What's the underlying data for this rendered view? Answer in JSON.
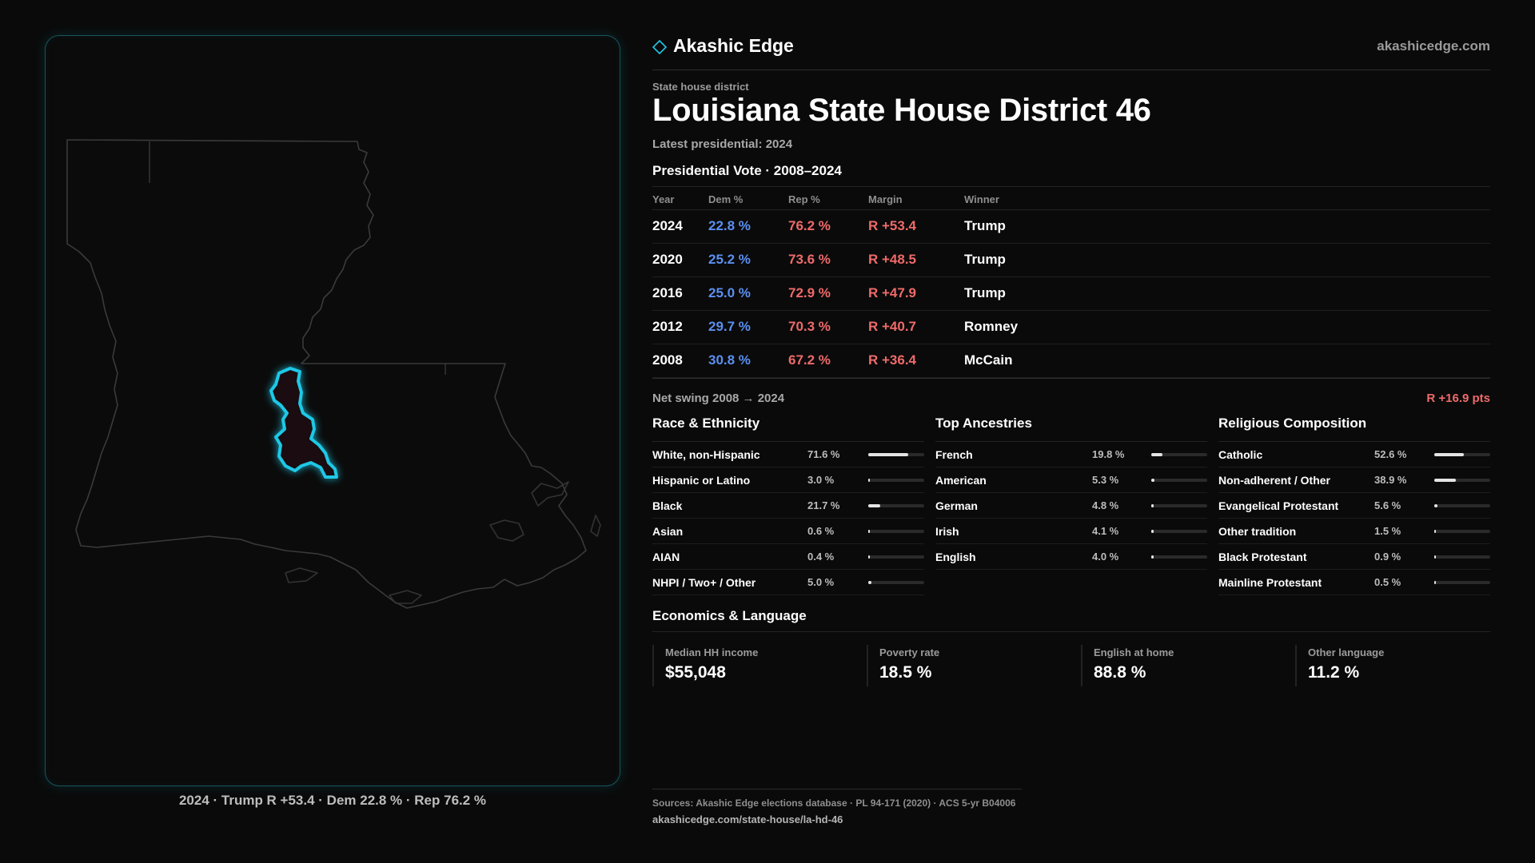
{
  "brand": {
    "name": "Akashic Edge",
    "url": "akashicedge.com",
    "accent": "#1ec8e6"
  },
  "header": {
    "kicker": "State house district",
    "title": "Louisiana State House District 46",
    "subtitle": "Latest presidential: 2024"
  },
  "map": {
    "caption": "2024 · Trump R +53.4 · Dem 22.8 % · Rep 76.2 %",
    "state_icon": "louisiana-outline",
    "district_highlight_color": "#1ec8e6"
  },
  "presidential": {
    "heading": "Presidential Vote · 2008–2024",
    "columns": [
      "Year",
      "Dem %",
      "Rep %",
      "Margin",
      "Winner"
    ],
    "rows": [
      {
        "year": "2024",
        "dem": "22.8 %",
        "rep": "76.2 %",
        "margin": "R +53.4",
        "winner": "Trump"
      },
      {
        "year": "2020",
        "dem": "25.2 %",
        "rep": "73.6 %",
        "margin": "R +48.5",
        "winner": "Trump"
      },
      {
        "year": "2016",
        "dem": "25.0 %",
        "rep": "72.9 %",
        "margin": "R +47.9",
        "winner": "Trump"
      },
      {
        "year": "2012",
        "dem": "29.7 %",
        "rep": "70.3 %",
        "margin": "R +40.7",
        "winner": "Romney"
      },
      {
        "year": "2008",
        "dem": "30.8 %",
        "rep": "67.2 %",
        "margin": "R +36.4",
        "winner": "McCain"
      }
    ],
    "dem_color": "#5b8ff0",
    "rep_color": "#ef6a6a"
  },
  "swing": {
    "label": "Net swing 2008 → 2024",
    "value": "R +16.9 pts"
  },
  "race": {
    "heading": "Race & Ethnicity",
    "rows": [
      {
        "label": "White, non-Hispanic",
        "pct": "71.6 %",
        "share": 0.716
      },
      {
        "label": "Hispanic or Latino",
        "pct": "3.0 %",
        "share": 0.03
      },
      {
        "label": "Black",
        "pct": "21.7 %",
        "share": 0.217
      },
      {
        "label": "Asian",
        "pct": "0.6 %",
        "share": 0.006
      },
      {
        "label": "AIAN",
        "pct": "0.4 %",
        "share": 0.004
      },
      {
        "label": "NHPI / Two+ / Other",
        "pct": "5.0 %",
        "share": 0.05
      }
    ]
  },
  "ancestry": {
    "heading": "Top Ancestries",
    "rows": [
      {
        "label": "French",
        "pct": "19.8 %",
        "share": 0.198
      },
      {
        "label": "American",
        "pct": "5.3 %",
        "share": 0.053
      },
      {
        "label": "German",
        "pct": "4.8 %",
        "share": 0.048
      },
      {
        "label": "Irish",
        "pct": "4.1 %",
        "share": 0.041
      },
      {
        "label": "English",
        "pct": "4.0 %",
        "share": 0.04
      }
    ]
  },
  "religion": {
    "heading": "Religious Composition",
    "rows": [
      {
        "label": "Catholic",
        "pct": "52.6 %",
        "share": 0.526
      },
      {
        "label": "Non-adherent / Other",
        "pct": "38.9 %",
        "share": 0.389
      },
      {
        "label": "Evangelical Protestant",
        "pct": "5.6 %",
        "share": 0.056
      },
      {
        "label": "Other tradition",
        "pct": "1.5 %",
        "share": 0.015
      },
      {
        "label": "Black Protestant",
        "pct": "0.9 %",
        "share": 0.009
      },
      {
        "label": "Mainline Protestant",
        "pct": "0.5 %",
        "share": 0.005
      }
    ]
  },
  "economics": {
    "heading": "Economics & Language",
    "cards": [
      {
        "label": "Median HH income",
        "value": "$55,048"
      },
      {
        "label": "Poverty rate",
        "value": "18.5 %"
      },
      {
        "label": "English at home",
        "value": "88.8 %"
      },
      {
        "label": "Other language",
        "value": "11.2 %"
      }
    ]
  },
  "sources": {
    "line": "Sources: Akashic Edge elections database · PL 94-171 (2020) · ACS 5-yr B04006",
    "url": "akashicedge.com/state-house/la-hd-46"
  }
}
